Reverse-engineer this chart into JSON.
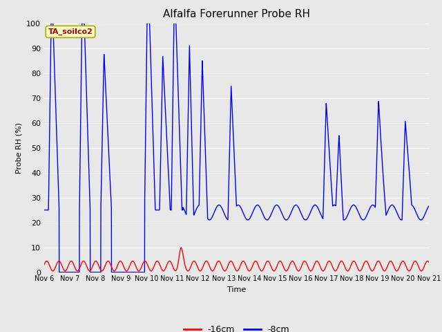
{
  "title": "Alfalfa Forerunner Probe RH",
  "xlabel": "Time",
  "ylabel": "Probe RH (%)",
  "ylim": [
    0,
    100
  ],
  "background_color": "#e8e8e8",
  "plot_bg_color": "#e8e8e8",
  "annotation_text": "TA_soilco2",
  "annotation_bg": "#ffffcc",
  "annotation_border": "#aaaa00",
  "annotation_text_color": "#aa0000",
  "legend_labels": [
    "-16cm",
    "-8cm"
  ],
  "legend_colors": [
    "red",
    "blue"
  ],
  "x_tick_labels": [
    "Nov 6",
    "Nov 7",
    "Nov 8",
    "Nov 9",
    "Nov 10",
    "Nov 11",
    "Nov 12",
    "Nov 13",
    "Nov 14",
    "Nov 15",
    "Nov 16",
    "Nov 17",
    "Nov 18",
    "Nov 19",
    "Nov 20",
    "Nov 21"
  ],
  "x_ticks": [
    0,
    24,
    48,
    72,
    96,
    120,
    144,
    168,
    192,
    216,
    240,
    264,
    288,
    312,
    336,
    360
  ],
  "blue_base_after120": 25,
  "red_amplitude": 3,
  "red_base": 2
}
